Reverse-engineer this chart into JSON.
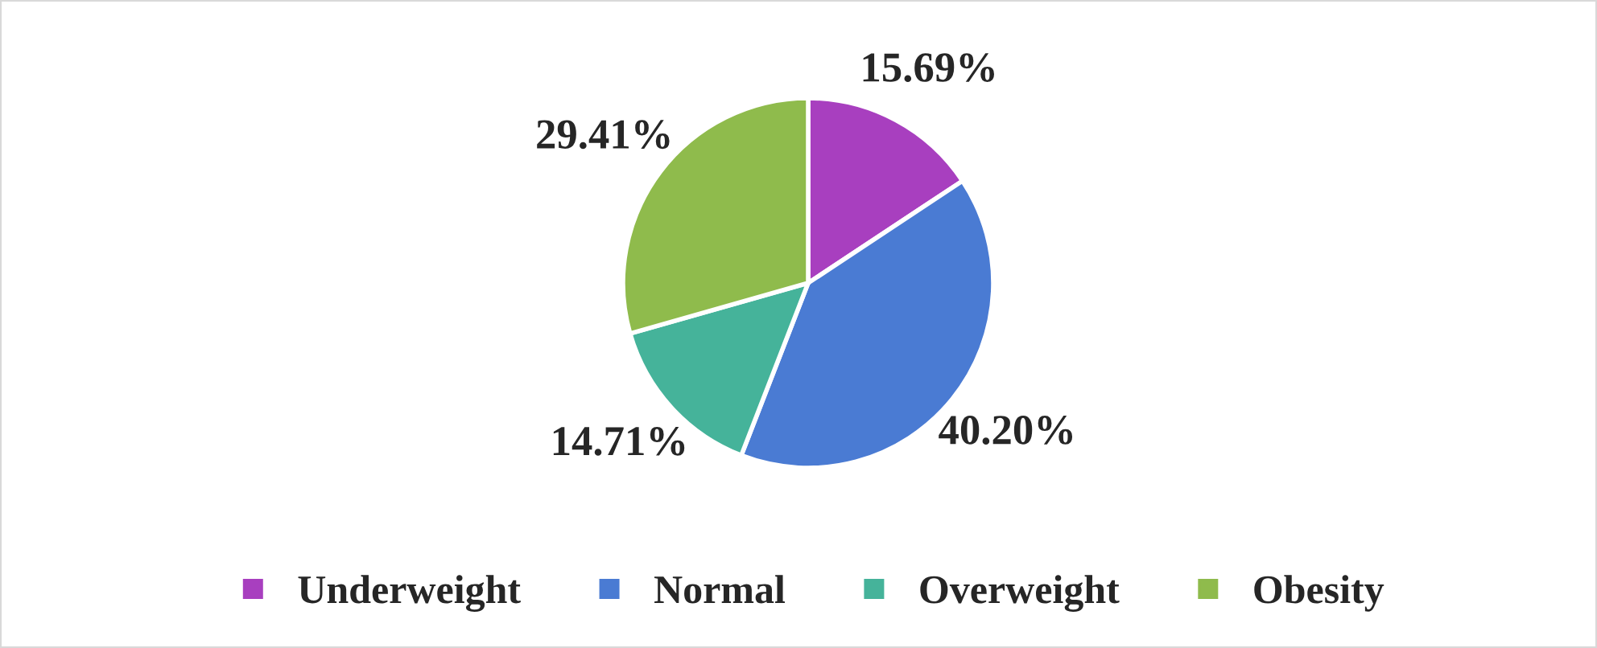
{
  "chart_data": {
    "type": "pie",
    "categories": [
      "Underweight",
      "Normal",
      "Overweight",
      "Obesity"
    ],
    "values": [
      15.69,
      40.2,
      14.71,
      29.41
    ],
    "value_labels": [
      "15.69%",
      "40.20%",
      "14.71%",
      "29.41%"
    ],
    "colors": [
      "#a83fbf",
      "#4a7bd3",
      "#45b39a",
      "#8fbb4c"
    ],
    "legend": "bottom"
  }
}
